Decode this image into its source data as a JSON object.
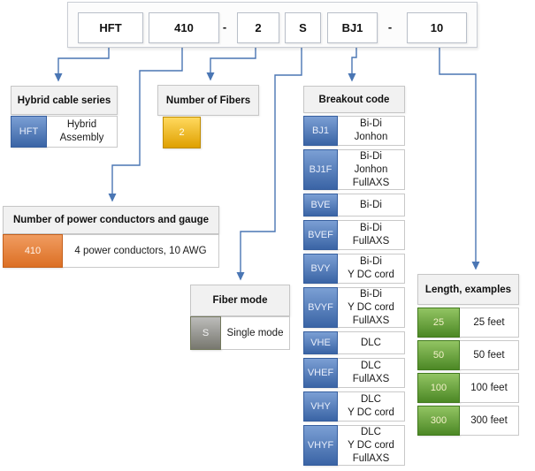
{
  "part_number": {
    "segments": [
      "HFT",
      "410",
      "-",
      "2",
      "S",
      "BJ1",
      "-",
      "10"
    ]
  },
  "colors": {
    "connector": "#4a76b4",
    "series_blue": "#3a64a5",
    "fibers_yellow": "#dfa000",
    "power_orange": "#dc6f24",
    "mode_gray": "#77776f",
    "length_green": "#4c8825",
    "header_gray": "#f1f1f1"
  },
  "tables": {
    "series": {
      "title": "Hybrid cable series",
      "rows": [
        {
          "code": "HFT",
          "desc": "Hybrid\nAssembly"
        }
      ]
    },
    "fibers": {
      "title": "Number of Fibers",
      "rows": [
        {
          "code": "2",
          "desc": ""
        }
      ]
    },
    "power": {
      "title": "Number of power conductors and gauge",
      "rows": [
        {
          "code": "410",
          "desc": "4 power conductors, 10 AWG"
        }
      ]
    },
    "fiber_mode": {
      "title": "Fiber mode",
      "rows": [
        {
          "code": "S",
          "desc": "Single mode"
        }
      ]
    },
    "breakout": {
      "title": "Breakout code",
      "rows": [
        {
          "code": "BJ1",
          "desc": "Bi-Di\nJonhon"
        },
        {
          "code": "BJ1F",
          "desc": "Bi-Di\nJonhon\nFullAXS"
        },
        {
          "code": "BVE",
          "desc": "Bi-Di"
        },
        {
          "code": "BVEF",
          "desc": "Bi-Di\nFullAXS"
        },
        {
          "code": "BVY",
          "desc": "Bi-Di\nY DC cord"
        },
        {
          "code": "BVYF",
          "desc": "Bi-Di\nY DC cord\nFullAXS"
        },
        {
          "code": "VHE",
          "desc": "DLC"
        },
        {
          "code": "VHEF",
          "desc": "DLC\nFullAXS"
        },
        {
          "code": "VHY",
          "desc": "DLC\nY DC cord"
        },
        {
          "code": "VHYF",
          "desc": "DLC\nY DC cord\nFullAXS"
        }
      ]
    },
    "length": {
      "title": "Length, examples",
      "rows": [
        {
          "code": "25",
          "desc": "25 feet"
        },
        {
          "code": "50",
          "desc": "50 feet"
        },
        {
          "code": "100",
          "desc": "100 feet"
        },
        {
          "code": "300",
          "desc": "300 feet"
        }
      ]
    }
  }
}
